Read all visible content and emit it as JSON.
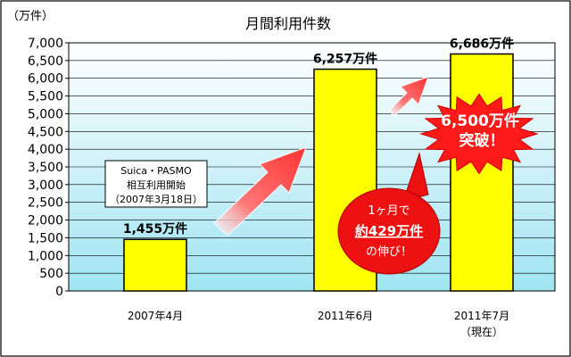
{
  "chart_data": {
    "type": "bar",
    "title": "月間利用件数",
    "unit_label": "（万件）",
    "categories": [
      {
        "line1": "2007年4月",
        "line2": ""
      },
      {
        "line1": "2011年6月",
        "line2": ""
      },
      {
        "line1": "2011年7月",
        "line2": "（現在）"
      }
    ],
    "values": [
      1455,
      6257,
      6686
    ],
    "data_labels": [
      "1,455万件",
      "6,257万件",
      "6,686万件"
    ],
    "ylim": [
      0,
      7000
    ],
    "yticks": [
      "0",
      "500",
      "1,000",
      "1,500",
      "2,000",
      "2,500",
      "3,000",
      "3,500",
      "4,000",
      "4,500",
      "5,000",
      "5,500",
      "6,000",
      "6,500",
      "7,000"
    ],
    "grid": true,
    "colors": {
      "bar_fill": "#ffff00",
      "bar_stroke": "#000000",
      "plot_top": "#ffffff",
      "plot_bottom": "#9fe4f2",
      "arrow": "#ff5555",
      "burst": "#ff1a1a",
      "ellipse": "#ee1111"
    },
    "annotations": {
      "note_box": [
        "Suica・PASMO",
        "相互利用開始",
        "（2007年3月18日）"
      ],
      "burst": [
        "6,500万件",
        "突破！"
      ],
      "growth": {
        "line1": "1ヶ月で",
        "line2": "約429万件",
        "line3": "の伸び！"
      }
    }
  }
}
